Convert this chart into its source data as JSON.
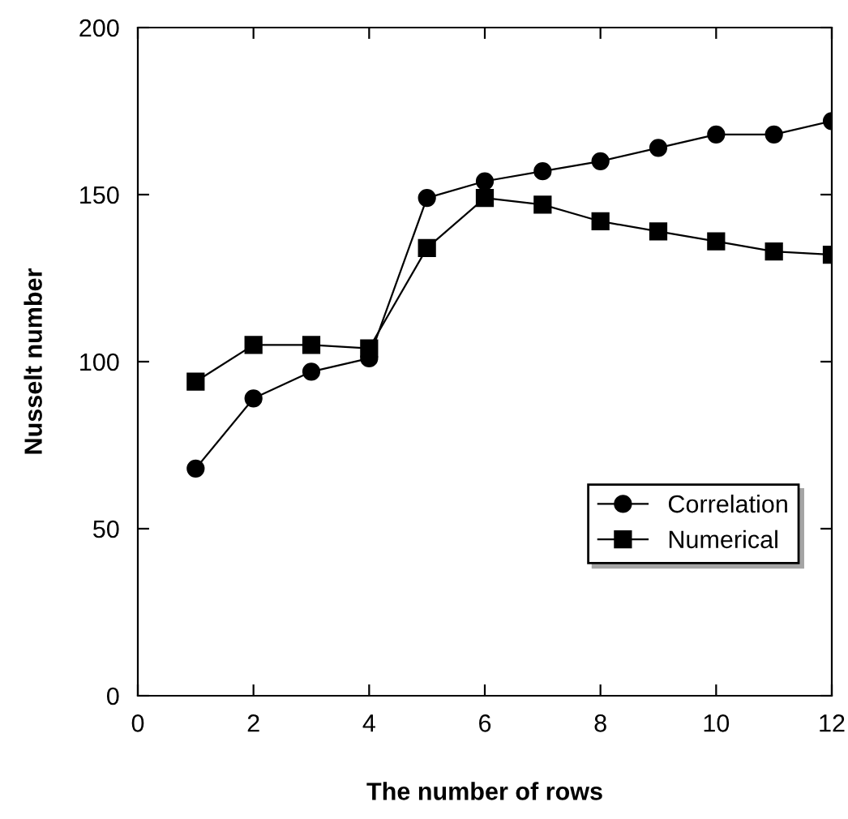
{
  "chart_data": {
    "type": "line",
    "xlabel": "The number of rows",
    "ylabel": "Nusselt number",
    "x": [
      1,
      2,
      3,
      4,
      5,
      6,
      7,
      8,
      9,
      10,
      11,
      12
    ],
    "series": [
      {
        "name": "Correlation",
        "color": "#000000",
        "marker": "circle",
        "values": [
          68,
          89,
          97,
          101,
          149,
          154,
          157,
          160,
          164,
          168,
          168,
          172
        ]
      },
      {
        "name": "Numerical",
        "color": "#000000",
        "marker": "square",
        "values": [
          94,
          105,
          105,
          104,
          134,
          149,
          147,
          142,
          139,
          136,
          133,
          132
        ]
      }
    ],
    "xlim": [
      0,
      12
    ],
    "xticks": [
      0,
      2,
      4,
      6,
      8,
      10,
      12
    ],
    "ylim": [
      0,
      200
    ],
    "yticks": [
      0,
      50,
      100,
      150,
      200
    ],
    "grid": false,
    "legend": "bottom right",
    "line_style": "solid"
  }
}
